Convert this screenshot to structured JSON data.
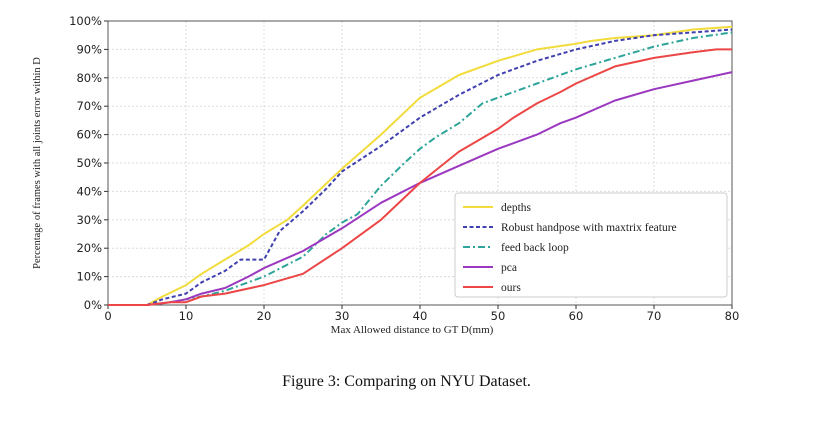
{
  "caption": "Figure 3: Comparing on NYU Dataset.",
  "chart_data": {
    "type": "line",
    "xlabel": "Max Allowed distance to GT D(mm)",
    "ylabel": "Percentage of frames with all joints error within D",
    "xlim": [
      0,
      80
    ],
    "ylim": [
      0,
      100
    ],
    "xticks": [
      0,
      10,
      20,
      30,
      40,
      50,
      60,
      70,
      80
    ],
    "yticks": [
      0,
      10,
      20,
      30,
      40,
      50,
      60,
      70,
      80,
      90,
      100
    ],
    "xtick_labels": [
      "0",
      "10",
      "20",
      "30",
      "40",
      "50",
      "60",
      "70",
      "80"
    ],
    "ytick_labels": [
      "0%",
      "10%",
      "20%",
      "30%",
      "40%",
      "50%",
      "60%",
      "70%",
      "80%",
      "90%",
      "100%"
    ],
    "grid": true,
    "legend_position": "lower-right",
    "series": [
      {
        "name": "depths",
        "color": "#f2dc3c",
        "dash": "solid",
        "x": [
          0,
          5,
          7,
          10,
          12,
          15,
          18,
          20,
          23,
          25,
          30,
          35,
          40,
          45,
          50,
          55,
          60,
          62,
          65,
          70,
          75,
          80
        ],
        "y": [
          0,
          0,
          3,
          7,
          11,
          16,
          21,
          25,
          30,
          35,
          48,
          60,
          73,
          81,
          86,
          90,
          92,
          93,
          94,
          95,
          97,
          98
        ]
      },
      {
        "name": "Robust handpose with maxtrix feature",
        "color": "#4040b0",
        "dash": "dashed",
        "x": [
          0,
          5,
          7,
          10,
          12,
          15,
          17,
          20,
          22,
          25,
          28,
          30,
          35,
          40,
          45,
          50,
          55,
          60,
          65,
          70,
          75,
          80
        ],
        "y": [
          0,
          0,
          2,
          4,
          8,
          12,
          16,
          16,
          26,
          33,
          41,
          47,
          56,
          66,
          74,
          81,
          86,
          90,
          93,
          95,
          96,
          97
        ]
      },
      {
        "name": "feed back loop",
        "color": "#2ea59a",
        "dash": "dashdot",
        "x": [
          0,
          5,
          8,
          10,
          12,
          15,
          18,
          20,
          25,
          28,
          30,
          32,
          35,
          38,
          40,
          42,
          45,
          48,
          50,
          55,
          60,
          65,
          70,
          75,
          80
        ],
        "y": [
          0,
          0,
          1,
          2,
          3,
          5,
          8,
          10,
          17,
          25,
          29,
          32,
          42,
          50,
          55,
          59,
          64,
          71,
          73,
          78,
          83,
          87,
          91,
          94,
          96
        ]
      },
      {
        "name": "pca",
        "color": "#9b38c0",
        "dash": "solid",
        "x": [
          0,
          5,
          8,
          10,
          12,
          15,
          18,
          20,
          25,
          30,
          35,
          40,
          45,
          50,
          55,
          58,
          60,
          65,
          70,
          75,
          80
        ],
        "y": [
          0,
          0,
          1,
          2,
          4,
          6,
          10,
          13,
          19,
          27,
          36,
          43,
          49,
          55,
          60,
          64,
          66,
          72,
          76,
          79,
          82
        ]
      },
      {
        "name": "ours",
        "color": "#ec4646",
        "dash": "solid",
        "x": [
          0,
          5,
          8,
          10,
          12,
          15,
          20,
          25,
          30,
          35,
          40,
          45,
          50,
          52,
          55,
          58,
          60,
          65,
          70,
          75,
          78,
          80
        ],
        "y": [
          0,
          0,
          1,
          1,
          3,
          4,
          7,
          11,
          20,
          30,
          43,
          54,
          62,
          66,
          71,
          75,
          78,
          84,
          87,
          89,
          90,
          90
        ]
      }
    ]
  }
}
